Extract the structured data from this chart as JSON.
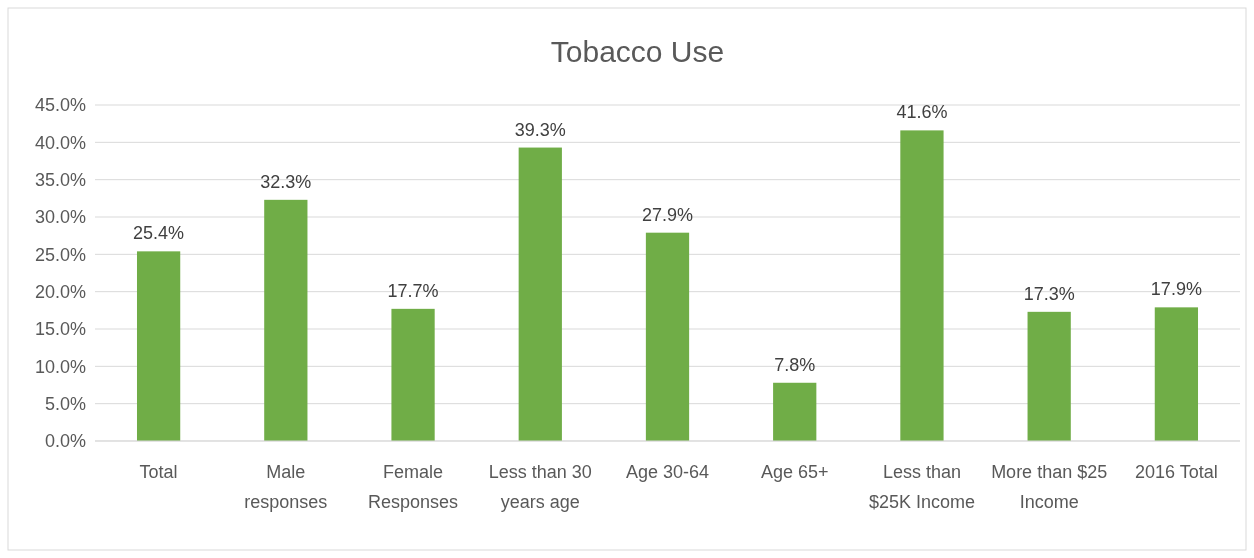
{
  "chart_data": {
    "type": "bar",
    "title": "Tobacco Use",
    "categories": [
      "Total",
      "Male responses",
      "Female Responses",
      "Less than 30 years age",
      "Age 30-64",
      "Age 65+",
      "Less than $25K Income",
      "More than $25 Income",
      "2016 Total"
    ],
    "values": [
      25.4,
      32.3,
      17.7,
      39.3,
      27.9,
      7.8,
      41.6,
      17.3,
      17.9
    ],
    "value_labels": [
      "25.4%",
      "32.3%",
      "17.7%",
      "39.3%",
      "27.9%",
      "7.8%",
      "41.6%",
      "17.3%",
      "17.9%"
    ],
    "color": "#70ad47",
    "ylim": [
      0,
      45
    ],
    "yticks": [
      {
        "value": 0,
        "label": "0.0%"
      },
      {
        "value": 5,
        "label": "5.0%"
      },
      {
        "value": 10,
        "label": "10.0%"
      },
      {
        "value": 15,
        "label": "15.0%"
      },
      {
        "value": 20,
        "label": "20.0%"
      },
      {
        "value": 25,
        "label": "25.0%"
      },
      {
        "value": 30,
        "label": "30.0%"
      },
      {
        "value": 35,
        "label": "35.0%"
      },
      {
        "value": 40,
        "label": "40.0%"
      },
      {
        "value": 45,
        "label": "45.0%"
      }
    ],
    "grid": "y"
  }
}
